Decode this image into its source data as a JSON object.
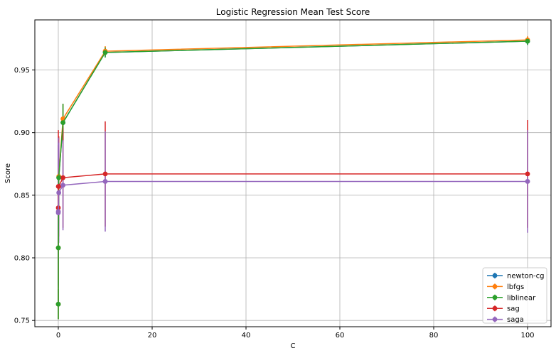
{
  "chart_data": {
    "type": "line",
    "title": "Logistic Regression Mean Test Score",
    "xlabel": "C",
    "ylabel": "Score",
    "xlim": [
      -5,
      105
    ],
    "ylim": [
      0.745,
      0.99
    ],
    "grid": true,
    "legend_position": "bottom-right",
    "x_ticks": [
      0,
      20,
      40,
      60,
      80,
      100
    ],
    "y_ticks": [
      0.75,
      0.8,
      0.85,
      0.9,
      0.95
    ],
    "x": [
      0.001,
      0.01,
      0.1,
      1,
      10,
      100
    ],
    "series": [
      {
        "name": "newton-cg",
        "color": "#1f77b4",
        "values": [
          0.763,
          0.808,
          0.864,
          0.908,
          0.964,
          0.973
        ],
        "errors": [
          0.012,
          0.03,
          0.02,
          0.015,
          0.004,
          0.003
        ]
      },
      {
        "name": "lbfgs",
        "color": "#ff7f0e",
        "values": [
          0.763,
          0.808,
          0.865,
          0.911,
          0.965,
          0.974
        ],
        "errors": [
          0.012,
          0.03,
          0.021,
          0.012,
          0.004,
          0.003
        ]
      },
      {
        "name": "liblinear",
        "color": "#2ca02c",
        "values": [
          0.763,
          0.808,
          0.864,
          0.908,
          0.964,
          0.973
        ],
        "errors": [
          0.012,
          0.03,
          0.02,
          0.015,
          0.004,
          0.003
        ]
      },
      {
        "name": "sag",
        "color": "#d62728",
        "values": [
          0.84,
          0.857,
          0.857,
          0.864,
          0.867,
          0.867
        ],
        "errors": [
          0.05,
          0.045,
          0.04,
          0.04,
          0.042,
          0.043
        ]
      },
      {
        "name": "saga",
        "color": "#9467bd",
        "values": [
          0.836,
          0.837,
          0.852,
          0.858,
          0.861,
          0.861
        ],
        "errors": [
          0.06,
          0.05,
          0.04,
          0.036,
          0.04,
          0.041
        ]
      }
    ]
  }
}
